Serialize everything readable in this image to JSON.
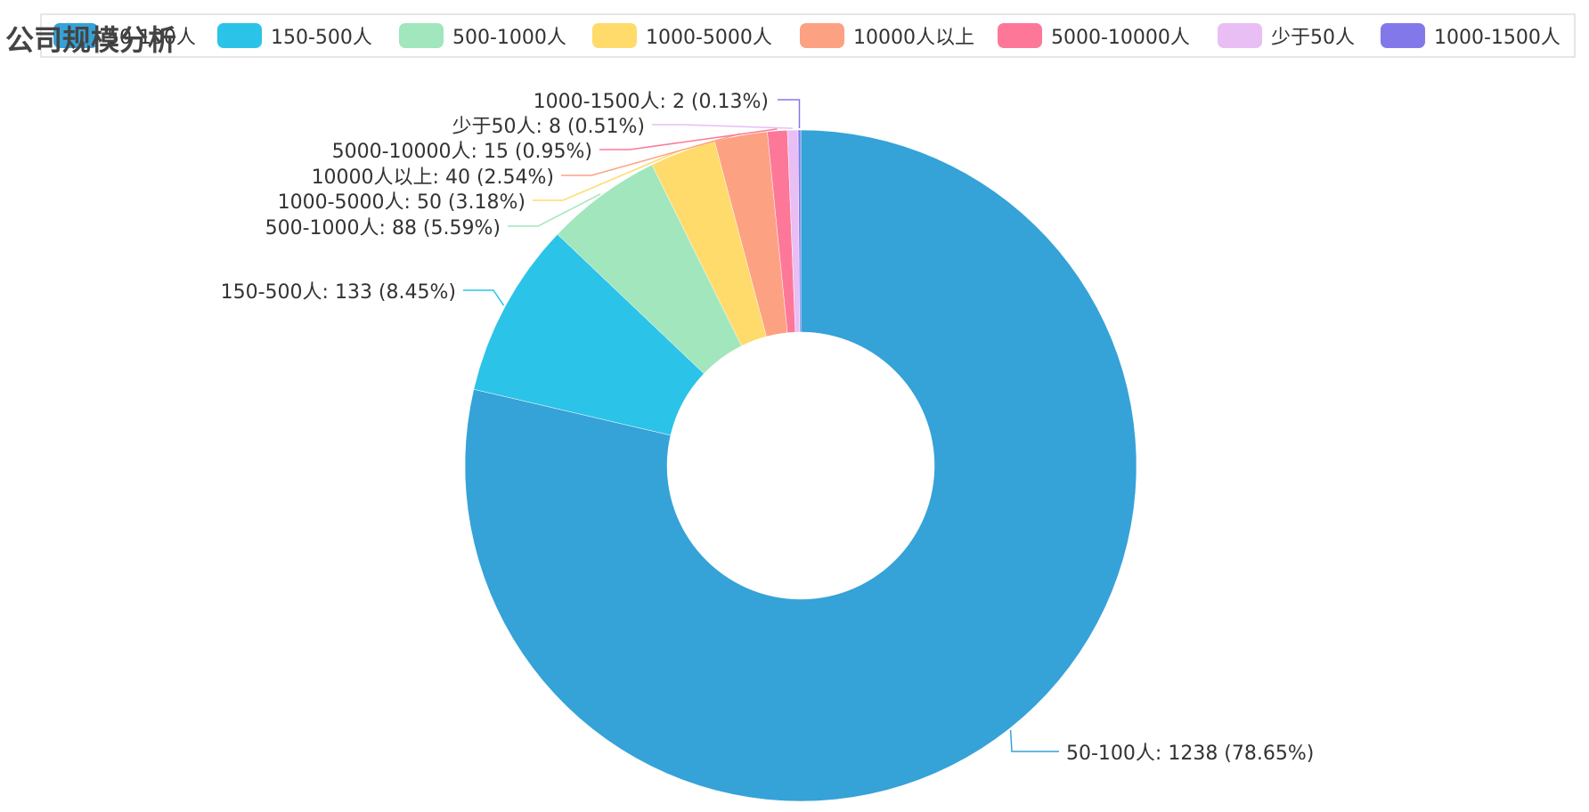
{
  "chart_data": {
    "type": "pie",
    "variant": "donut",
    "title": "公司规模分析",
    "legend_position": "top",
    "categories": [
      "50-100人",
      "150-500人",
      "500-1000人",
      "1000-5000人",
      "10000人以上",
      "5000-10000人",
      "少于50人",
      "1000-1500人"
    ],
    "values": [
      1238,
      133,
      88,
      50,
      40,
      15,
      8,
      2
    ],
    "percents": [
      "78.65%",
      "8.45%",
      "5.59%",
      "3.18%",
      "2.54%",
      "0.95%",
      "0.51%",
      "0.13%"
    ],
    "labels": [
      "50-100人: 1238 (78.65%)",
      "150-500人: 133 (8.45%)",
      "500-1000人: 88 (5.59%)",
      "1000-5000人: 50 (3.18%)",
      "10000人以上: 40 (2.54%)",
      "5000-10000人: 15 (0.95%)",
      "少于50人: 8 (0.51%)",
      "1000-1500人: 2 (0.13%)"
    ],
    "colors": [
      "#35a2d8",
      "#2bc3e8",
      "#a1e6bc",
      "#fedb6b",
      "#fda183",
      "#fd7898",
      "#e8bef4",
      "#8378ea"
    ]
  }
}
